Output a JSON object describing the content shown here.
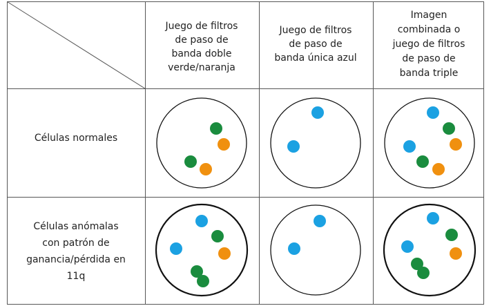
{
  "header": {
    "columns": [
      [
        "Juego de filtros",
        "de paso de",
        "banda doble",
        "verde/naranja"
      ],
      [
        "Juego de filtros",
        "de paso de",
        "banda única azul"
      ],
      [
        "Imagen",
        "combinada o",
        "juego de filtros",
        "de paso de",
        "banda triple"
      ]
    ]
  },
  "rows": [
    {
      "label": [
        "Células normales"
      ]
    },
    {
      "label": [
        "Células anómalas",
        "con patrón de",
        "ganancia/pérdida en",
        "11q"
      ]
    }
  ]
}
